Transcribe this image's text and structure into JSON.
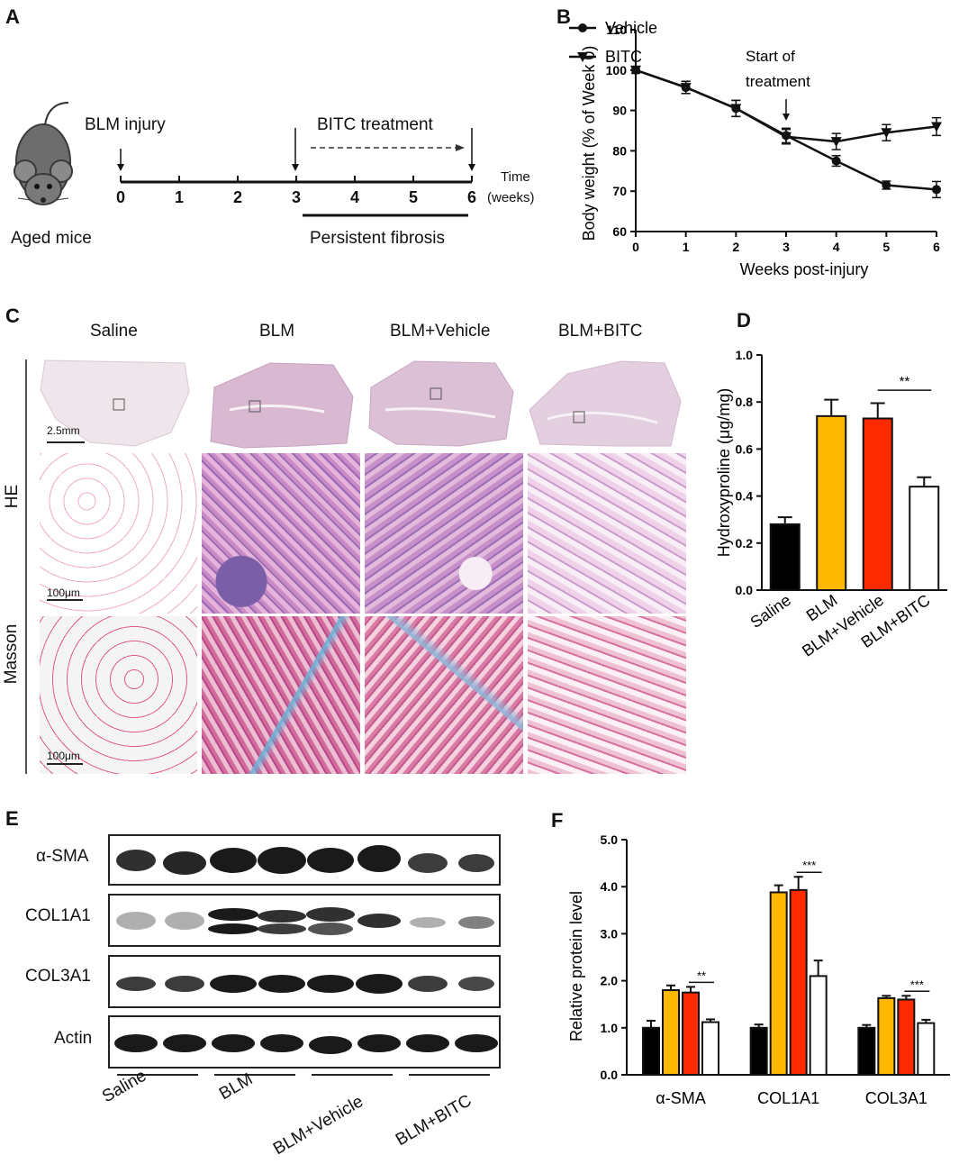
{
  "panels": {
    "a": "A",
    "b": "B",
    "c": "C",
    "d": "D",
    "e": "E",
    "f": "F"
  },
  "panelA": {
    "blm_injury": "BLM injury",
    "bitc_treatment": "BITC treatment",
    "aged_mice": "Aged mice",
    "time_label": "Time",
    "weeks_label": "(weeks)",
    "persistent_fibrosis": "Persistent fibrosis",
    "timeline_ticks": [
      "0",
      "1",
      "2",
      "3",
      "4",
      "5",
      "6"
    ]
  },
  "panelB": {
    "start_of": "Start of",
    "treatment": "treatment",
    "chart_data": {
      "type": "line",
      "x": [
        0,
        1,
        2,
        3,
        4,
        5,
        6
      ],
      "xlabel": "Weeks post-injury",
      "ylabel": "Body weight (% of Week 0)",
      "ylim": [
        60,
        110
      ],
      "yticks": [
        60,
        70,
        80,
        90,
        100,
        110
      ],
      "legend_position": "top-left",
      "series": [
        {
          "name": "Vehicle",
          "marker": "circle",
          "values": [
            100,
            95.7,
            90.5,
            83.8,
            77.5,
            71.5,
            70.4
          ],
          "errors": [
            0.8,
            1.5,
            2.0,
            1.8,
            1.3,
            1.0,
            2.0
          ]
        },
        {
          "name": "BITC",
          "marker": "triangle-down",
          "values": [
            100,
            95.7,
            90.5,
            83.5,
            82.3,
            84.5,
            86.0
          ],
          "errors": [
            0.8,
            1.5,
            2.0,
            1.8,
            2.0,
            2.0,
            2.2
          ]
        }
      ]
    }
  },
  "panelC": {
    "columns": [
      "Saline",
      "BLM",
      "BLM+Vehicle",
      "BLM+BITC"
    ],
    "rows": [
      "HE",
      "Masson"
    ],
    "scale_overview": "2.5mm",
    "scale_he": "100μm",
    "scale_masson": "100μm"
  },
  "panelD": {
    "chart_data": {
      "type": "bar",
      "categories": [
        "Saline",
        "BLM",
        "BLM+Vehicle",
        "BLM+BITC"
      ],
      "values": [
        0.28,
        0.74,
        0.73,
        0.44
      ],
      "errors": [
        0.03,
        0.07,
        0.065,
        0.04
      ],
      "colors": [
        "#000000",
        "#FFB800",
        "#FF2A00",
        "#ffffff"
      ],
      "ylabel": "Hydroxyproline (μg/mg)",
      "ylim": [
        0,
        1.0
      ],
      "yticks": [
        "0.0",
        "0.2",
        "0.4",
        "0.6",
        "0.8",
        "1.0"
      ],
      "significance": {
        "between": [
          2,
          3
        ],
        "label": "**"
      }
    }
  },
  "panelE": {
    "proteins": [
      "α-SMA",
      "COL1A1",
      "COL3A1",
      "Actin"
    ],
    "groups": [
      "Saline",
      "BLM",
      "BLM+Vehicle",
      "BLM+BITC"
    ]
  },
  "panelF": {
    "chart_data": {
      "type": "bar",
      "categories": [
        "α-SMA",
        "COL1A1",
        "COL3A1"
      ],
      "ylabel": "Relative protein level",
      "ylim": [
        0,
        5.0
      ],
      "yticks": [
        "0.0",
        "1.0",
        "2.0",
        "3.0",
        "4.0",
        "5.0"
      ],
      "series": [
        {
          "name": "Saline",
          "color": "#000000",
          "values": [
            1.0,
            1.0,
            1.0
          ],
          "errors": [
            0.15,
            0.07,
            0.06
          ]
        },
        {
          "name": "BLM",
          "color": "#FFB800",
          "values": [
            1.8,
            3.88,
            1.63
          ],
          "errors": [
            0.1,
            0.15,
            0.05
          ]
        },
        {
          "name": "BLM+Vehicle",
          "color": "#FF2A00",
          "values": [
            1.75,
            3.93,
            1.6
          ],
          "errors": [
            0.12,
            0.28,
            0.08
          ]
        },
        {
          "name": "BLM+BITC",
          "color": "#ffffff",
          "values": [
            1.12,
            2.1,
            1.1
          ],
          "errors": [
            0.06,
            0.33,
            0.07
          ]
        }
      ],
      "significance": [
        {
          "category": 0,
          "label": "**"
        },
        {
          "category": 1,
          "label": "***"
        },
        {
          "category": 2,
          "label": "***"
        }
      ]
    }
  }
}
